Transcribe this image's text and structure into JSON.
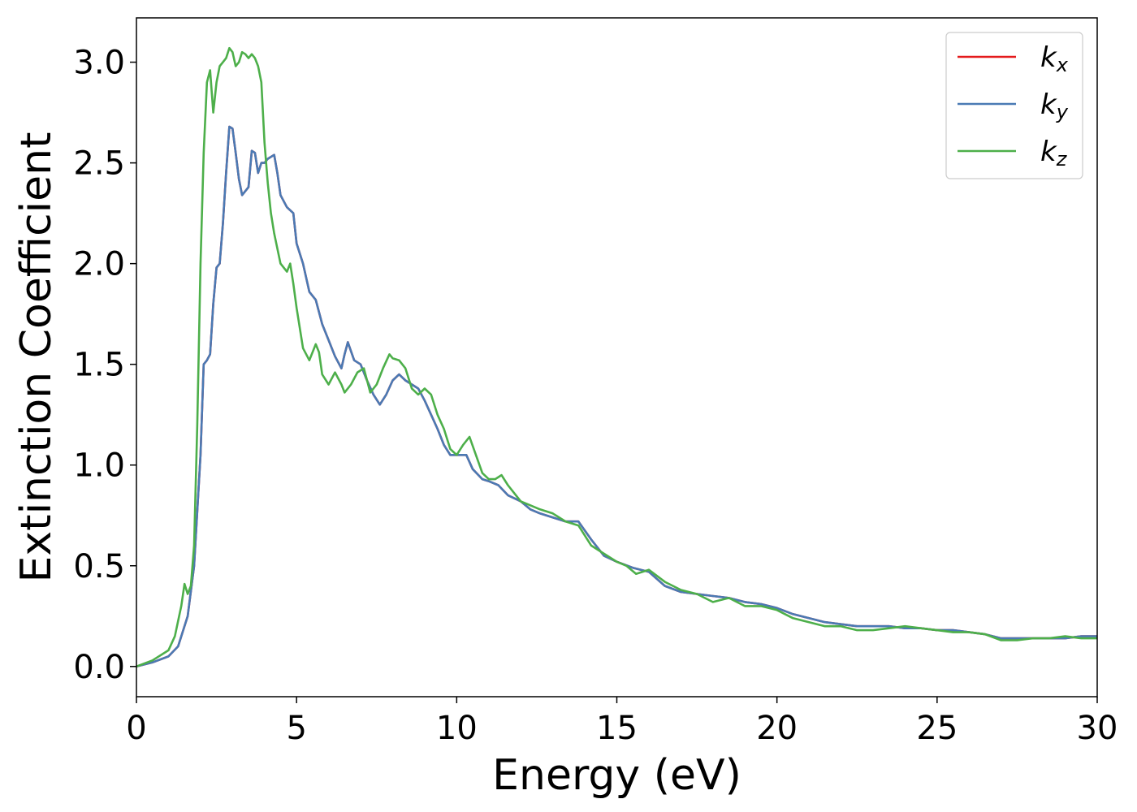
{
  "chart_data": {
    "type": "line",
    "title": "",
    "xlabel": "Energy (eV)",
    "ylabel": "Extinction Coefficient",
    "xlim": [
      0,
      30
    ],
    "ylim": [
      -0.15,
      3.22
    ],
    "xticks": [
      0,
      5,
      10,
      15,
      20,
      25,
      30
    ],
    "yticks": [
      0.0,
      0.5,
      1.0,
      1.5,
      2.0,
      2.5,
      3.0
    ],
    "xtick_labels": [
      "0",
      "5",
      "10",
      "15",
      "20",
      "25",
      "30"
    ],
    "ytick_labels": [
      "0.0",
      "0.5",
      "1.0",
      "1.5",
      "2.0",
      "2.5",
      "3.0"
    ],
    "grid": false,
    "legend": "top-right",
    "series": [
      {
        "name": "k_x",
        "label_main": "k",
        "label_sub": "x",
        "color": "#e41a1c",
        "x": [
          0,
          0.5,
          1.0,
          1.3,
          1.6,
          1.8,
          2.0,
          2.1,
          2.2,
          2.3,
          2.4,
          2.5,
          2.6,
          2.7,
          2.8,
          2.9,
          3.0,
          3.1,
          3.2,
          3.3,
          3.5,
          3.6,
          3.7,
          3.8,
          3.9,
          4.0,
          4.1,
          4.3,
          4.4,
          4.5,
          4.7,
          4.9,
          5.0,
          5.2,
          5.4,
          5.6,
          5.8,
          6.0,
          6.2,
          6.4,
          6.5,
          6.6,
          6.8,
          7.0,
          7.2,
          7.4,
          7.6,
          7.8,
          8.0,
          8.2,
          8.4,
          8.6,
          8.8,
          9.0,
          9.2,
          9.4,
          9.6,
          9.8,
          10.0,
          10.3,
          10.5,
          10.8,
          11.0,
          11.3,
          11.6,
          12.0,
          12.3,
          12.6,
          13.0,
          13.4,
          13.8,
          14.2,
          14.6,
          15.0,
          15.5,
          16.0,
          16.5,
          17.0,
          17.5,
          18.0,
          18.5,
          19.0,
          19.5,
          20.0,
          20.5,
          21.0,
          21.5,
          22.0,
          22.5,
          23.0,
          23.5,
          24.0,
          24.5,
          25.0,
          25.5,
          26.0,
          26.5,
          27.0,
          27.5,
          28.0,
          28.5,
          29.0,
          29.5,
          30.0
        ],
        "y": [
          0.0,
          0.02,
          0.05,
          0.1,
          0.25,
          0.5,
          1.05,
          1.5,
          1.52,
          1.55,
          1.8,
          1.98,
          2.0,
          2.2,
          2.45,
          2.68,
          2.67,
          2.55,
          2.42,
          2.34,
          2.38,
          2.56,
          2.55,
          2.45,
          2.5,
          2.5,
          2.52,
          2.54,
          2.45,
          2.34,
          2.28,
          2.25,
          2.1,
          2.0,
          1.86,
          1.82,
          1.7,
          1.62,
          1.54,
          1.48,
          1.55,
          1.61,
          1.52,
          1.5,
          1.42,
          1.35,
          1.3,
          1.35,
          1.42,
          1.45,
          1.42,
          1.4,
          1.38,
          1.32,
          1.25,
          1.18,
          1.1,
          1.05,
          1.05,
          1.05,
          0.98,
          0.93,
          0.92,
          0.9,
          0.85,
          0.82,
          0.78,
          0.76,
          0.74,
          0.72,
          0.72,
          0.63,
          0.55,
          0.52,
          0.49,
          0.47,
          0.4,
          0.37,
          0.36,
          0.35,
          0.34,
          0.32,
          0.31,
          0.29,
          0.26,
          0.24,
          0.22,
          0.21,
          0.2,
          0.2,
          0.2,
          0.19,
          0.19,
          0.18,
          0.18,
          0.17,
          0.16,
          0.14,
          0.14,
          0.14,
          0.14,
          0.14,
          0.15,
          0.15
        ]
      },
      {
        "name": "k_y",
        "label_main": "k",
        "label_sub": "y",
        "color": "#4a7ab4",
        "x": [
          0,
          0.5,
          1.0,
          1.3,
          1.6,
          1.8,
          2.0,
          2.1,
          2.2,
          2.3,
          2.4,
          2.5,
          2.6,
          2.7,
          2.8,
          2.9,
          3.0,
          3.1,
          3.2,
          3.3,
          3.5,
          3.6,
          3.7,
          3.8,
          3.9,
          4.0,
          4.1,
          4.3,
          4.4,
          4.5,
          4.7,
          4.9,
          5.0,
          5.2,
          5.4,
          5.6,
          5.8,
          6.0,
          6.2,
          6.4,
          6.5,
          6.6,
          6.8,
          7.0,
          7.2,
          7.4,
          7.6,
          7.8,
          8.0,
          8.2,
          8.4,
          8.6,
          8.8,
          9.0,
          9.2,
          9.4,
          9.6,
          9.8,
          10.0,
          10.3,
          10.5,
          10.8,
          11.0,
          11.3,
          11.6,
          12.0,
          12.3,
          12.6,
          13.0,
          13.4,
          13.8,
          14.2,
          14.6,
          15.0,
          15.5,
          16.0,
          16.5,
          17.0,
          17.5,
          18.0,
          18.5,
          19.0,
          19.5,
          20.0,
          20.5,
          21.0,
          21.5,
          22.0,
          22.5,
          23.0,
          23.5,
          24.0,
          24.5,
          25.0,
          25.5,
          26.0,
          26.5,
          27.0,
          27.5,
          28.0,
          28.5,
          29.0,
          29.5,
          30.0
        ],
        "y": [
          0.0,
          0.02,
          0.05,
          0.1,
          0.25,
          0.5,
          1.05,
          1.5,
          1.52,
          1.55,
          1.8,
          1.98,
          2.0,
          2.2,
          2.45,
          2.68,
          2.67,
          2.55,
          2.42,
          2.34,
          2.38,
          2.56,
          2.55,
          2.45,
          2.5,
          2.5,
          2.52,
          2.54,
          2.45,
          2.34,
          2.28,
          2.25,
          2.1,
          2.0,
          1.86,
          1.82,
          1.7,
          1.62,
          1.54,
          1.48,
          1.55,
          1.61,
          1.52,
          1.5,
          1.42,
          1.35,
          1.3,
          1.35,
          1.42,
          1.45,
          1.42,
          1.4,
          1.38,
          1.32,
          1.25,
          1.18,
          1.1,
          1.05,
          1.05,
          1.05,
          0.98,
          0.93,
          0.92,
          0.9,
          0.85,
          0.82,
          0.78,
          0.76,
          0.74,
          0.72,
          0.72,
          0.63,
          0.55,
          0.52,
          0.49,
          0.47,
          0.4,
          0.37,
          0.36,
          0.35,
          0.34,
          0.32,
          0.31,
          0.29,
          0.26,
          0.24,
          0.22,
          0.21,
          0.2,
          0.2,
          0.2,
          0.19,
          0.19,
          0.18,
          0.18,
          0.17,
          0.16,
          0.14,
          0.14,
          0.14,
          0.14,
          0.14,
          0.15,
          0.15
        ]
      },
      {
        "name": "k_z",
        "label_main": "k",
        "label_sub": "z",
        "color": "#4daf4a",
        "x": [
          0,
          0.5,
          1.0,
          1.2,
          1.4,
          1.5,
          1.6,
          1.7,
          1.8,
          1.9,
          2.0,
          2.1,
          2.2,
          2.3,
          2.4,
          2.5,
          2.6,
          2.7,
          2.8,
          2.9,
          3.0,
          3.1,
          3.2,
          3.3,
          3.4,
          3.5,
          3.6,
          3.7,
          3.8,
          3.9,
          4.0,
          4.1,
          4.2,
          4.3,
          4.5,
          4.7,
          4.8,
          4.9,
          5.0,
          5.2,
          5.4,
          5.6,
          5.7,
          5.8,
          6.0,
          6.2,
          6.4,
          6.5,
          6.7,
          6.9,
          7.1,
          7.3,
          7.5,
          7.7,
          7.9,
          8.0,
          8.2,
          8.4,
          8.6,
          8.8,
          9.0,
          9.2,
          9.4,
          9.6,
          9.8,
          10.0,
          10.2,
          10.4,
          10.6,
          10.8,
          11.0,
          11.2,
          11.4,
          11.6,
          12.0,
          12.3,
          12.6,
          13.0,
          13.4,
          13.8,
          14.2,
          14.6,
          15.0,
          15.3,
          15.6,
          16.0,
          16.5,
          17.0,
          17.5,
          18.0,
          18.5,
          19.0,
          19.5,
          20.0,
          20.5,
          21.0,
          21.5,
          22.0,
          22.5,
          23.0,
          23.5,
          24.0,
          24.5,
          25.0,
          25.5,
          26.0,
          26.5,
          27.0,
          27.5,
          28.0,
          28.5,
          29.0,
          29.5,
          30.0
        ],
        "y": [
          0.0,
          0.03,
          0.08,
          0.15,
          0.3,
          0.41,
          0.36,
          0.4,
          0.6,
          1.2,
          2.0,
          2.55,
          2.9,
          2.96,
          2.75,
          2.9,
          2.98,
          3.0,
          3.02,
          3.07,
          3.05,
          2.98,
          3.0,
          3.05,
          3.04,
          3.02,
          3.04,
          3.02,
          2.98,
          2.9,
          2.6,
          2.4,
          2.25,
          2.15,
          2.0,
          1.96,
          2.0,
          1.9,
          1.78,
          1.58,
          1.52,
          1.6,
          1.56,
          1.45,
          1.4,
          1.46,
          1.4,
          1.36,
          1.4,
          1.46,
          1.48,
          1.36,
          1.4,
          1.48,
          1.55,
          1.53,
          1.52,
          1.48,
          1.38,
          1.35,
          1.38,
          1.35,
          1.25,
          1.18,
          1.08,
          1.05,
          1.1,
          1.14,
          1.05,
          0.96,
          0.93,
          0.93,
          0.95,
          0.9,
          0.82,
          0.8,
          0.78,
          0.76,
          0.72,
          0.7,
          0.6,
          0.56,
          0.52,
          0.5,
          0.46,
          0.48,
          0.42,
          0.38,
          0.36,
          0.32,
          0.34,
          0.3,
          0.3,
          0.28,
          0.24,
          0.22,
          0.2,
          0.2,
          0.18,
          0.18,
          0.19,
          0.2,
          0.19,
          0.18,
          0.17,
          0.17,
          0.16,
          0.13,
          0.13,
          0.14,
          0.14,
          0.15,
          0.14,
          0.14
        ]
      }
    ]
  }
}
